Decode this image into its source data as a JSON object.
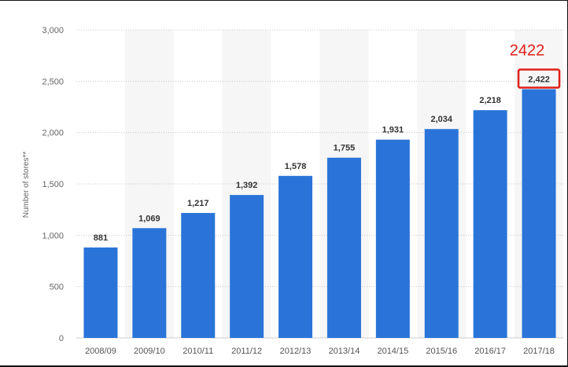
{
  "chart_data": {
    "type": "bar",
    "categories": [
      "2008/09",
      "2009/10",
      "2010/11",
      "2011/12",
      "2012/13",
      "2013/14",
      "2014/15",
      "2015/16",
      "2016/17",
      "2017/18"
    ],
    "values": [
      881,
      1069,
      1217,
      1392,
      1578,
      1755,
      1931,
      2034,
      2218,
      2422
    ],
    "value_labels": [
      "881",
      "1,069",
      "1,217",
      "1,392",
      "1,578",
      "1,755",
      "1,931",
      "2,034",
      "2,218",
      "2,422"
    ],
    "yticks": [
      0,
      500,
      1000,
      1500,
      2000,
      2500,
      3000
    ],
    "ytick_labels": [
      "0",
      "500",
      "1,000",
      "1,500",
      "2,000",
      "2,500",
      "3,000"
    ],
    "ylabel": "Number of stores**",
    "xlabel": "",
    "ylim": [
      0,
      3000
    ],
    "grid": true,
    "bar_color": "#2a74d9",
    "annotation": {
      "text": "2422",
      "color": "#e0201a",
      "target_category": "2017/18"
    }
  }
}
